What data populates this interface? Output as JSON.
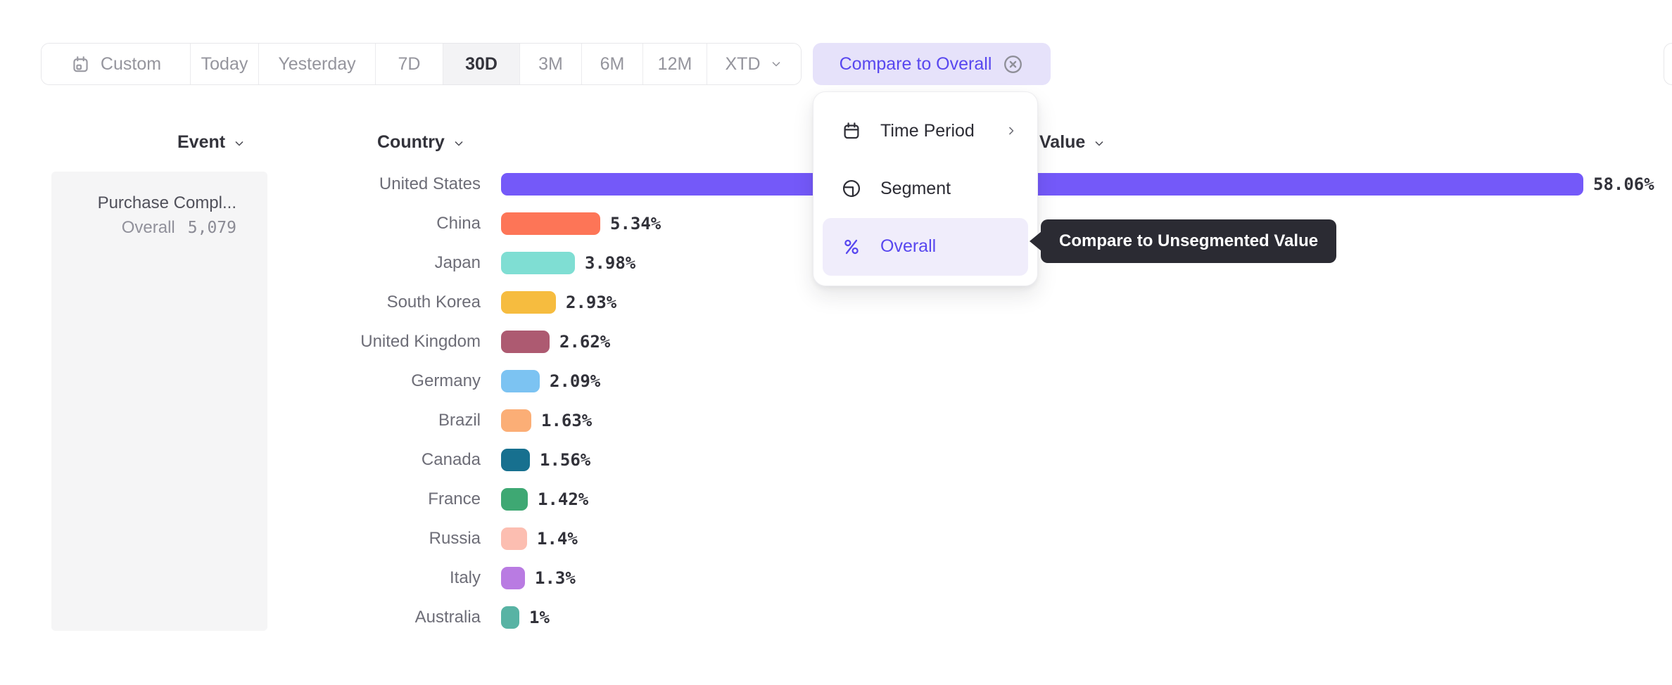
{
  "toolbar": {
    "date_buttons": [
      {
        "label": "Custom",
        "icon": "calendar",
        "active": false
      },
      {
        "label": "Today",
        "active": false
      },
      {
        "label": "Yesterday",
        "active": false
      },
      {
        "label": "7D",
        "active": false
      },
      {
        "label": "30D",
        "active": true
      },
      {
        "label": "3M",
        "active": false
      },
      {
        "label": "6M",
        "active": false
      },
      {
        "label": "12M",
        "active": false
      },
      {
        "label": "XTD",
        "chevron": true,
        "active": false
      }
    ],
    "compare_button": {
      "label": "Compare to Overall",
      "icon": "dismiss-circle"
    }
  },
  "menu": {
    "items": [
      {
        "label": "Time Period",
        "icon": "calendar-line",
        "has_submenu": true,
        "selected": false
      },
      {
        "label": "Segment",
        "icon": "segment",
        "has_submenu": false,
        "selected": false
      },
      {
        "label": "Overall",
        "icon": "percent",
        "has_submenu": false,
        "selected": true
      }
    ]
  },
  "tooltip": {
    "text": "Compare to Unsegmented Value"
  },
  "table": {
    "columns": [
      {
        "label": "Event"
      },
      {
        "label": "Country"
      },
      {
        "label": "Value"
      }
    ],
    "event": {
      "name": "Purchase Compl...",
      "overall_label": "Overall",
      "overall_value": "5,079"
    }
  },
  "chart_data": {
    "type": "bar",
    "orientation": "horizontal",
    "categories": [
      "United States",
      "China",
      "Japan",
      "South Korea",
      "United Kingdom",
      "Germany",
      "Brazil",
      "Canada",
      "France",
      "Russia",
      "Italy",
      "Australia"
    ],
    "values": [
      58.06,
      5.34,
      3.98,
      2.93,
      2.62,
      2.09,
      1.63,
      1.56,
      1.42,
      1.4,
      1.3,
      1
    ],
    "value_labels": [
      "58.06%",
      "5.34%",
      "3.98%",
      "2.93%",
      "2.62%",
      "2.09%",
      "1.63%",
      "1.56%",
      "1.42%",
      "1.4%",
      "1.3%",
      "1%"
    ],
    "colors": [
      "#7459f9",
      "#fd7557",
      "#7fded3",
      "#f6bc3f",
      "#ad5a71",
      "#7cc3f2",
      "#fbae76",
      "#17708f",
      "#3ea873",
      "#fcbeb1",
      "#b97be2",
      "#58b3a4"
    ],
    "unit": "%",
    "xlim": [
      0,
      60
    ],
    "grid": false,
    "legend": false
  },
  "colors": {
    "accent_purple": "#5847ef",
    "compare_pill_bg": "#e6e2fa",
    "menu_highlight_bg": "#f0edfb",
    "tooltip_bg": "#2b2b33",
    "event_panel_bg": "#f5f5f6",
    "active_date_bg": "#f3f3f5",
    "toolbar_border": "#e7e7ea"
  }
}
